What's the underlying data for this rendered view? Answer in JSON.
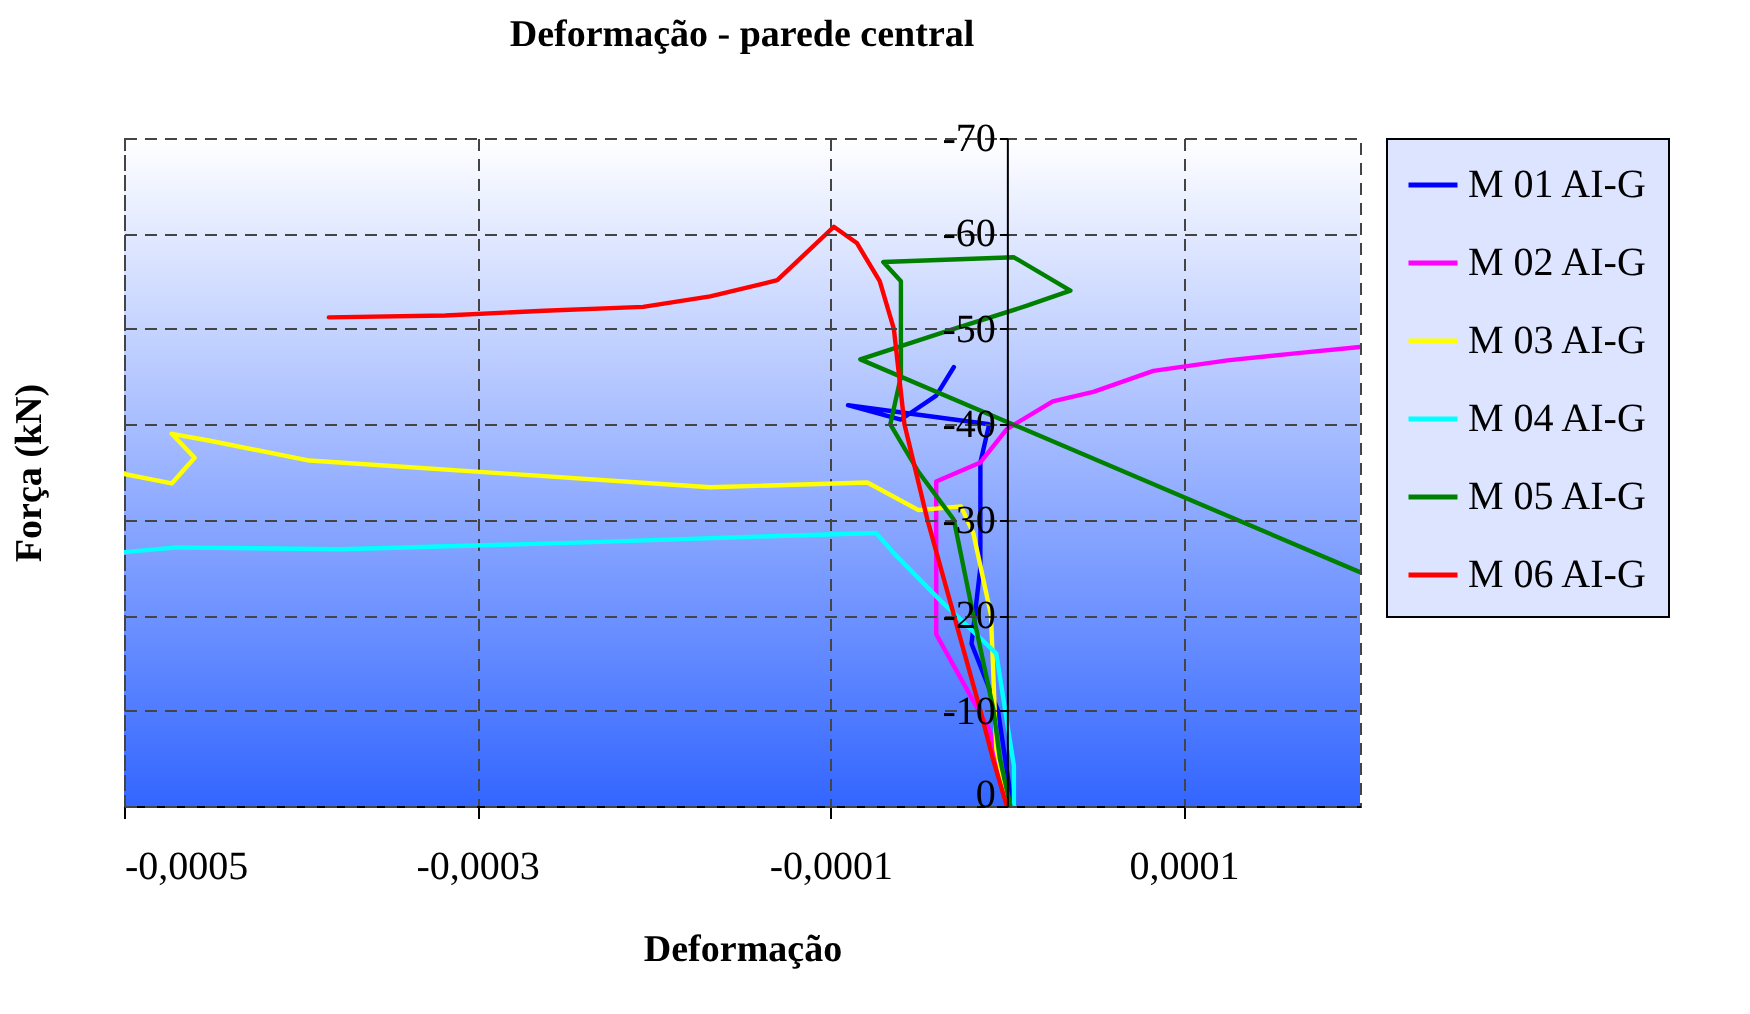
{
  "chart_data": {
    "type": "line",
    "title": "Deformação - parede central",
    "xlabel": "Deformação",
    "ylabel": "Força (kN)",
    "xlim": [
      -0.0005,
      0.0002
    ],
    "ylim": [
      0,
      -70
    ],
    "xticks": [
      {
        "value": -0.0005,
        "label": "-0,0005"
      },
      {
        "value": -0.0003,
        "label": "-0,0003"
      },
      {
        "value": -0.0001,
        "label": "-0,0001"
      },
      {
        "value": 0.0001,
        "label": "0,0001"
      }
    ],
    "yticks": [
      0,
      -10,
      -20,
      -30,
      -40,
      -50,
      -60,
      -70
    ],
    "grid": true,
    "legend": "right",
    "line_style": "solid",
    "marker": "none",
    "series": [
      {
        "name": "M 01 AI-G",
        "color": "#0000ff",
        "x": [
          3e-06,
          -5e-06,
          -2e-05,
          -1.5e-05,
          -1.5e-05,
          -1.5e-05,
          -1e-05,
          -5e-05,
          -9e-05,
          -6e-05,
          -4e-05,
          -3e-05
        ],
        "values": [
          0,
          -10,
          -17,
          -25,
          -30,
          -36,
          -40,
          -41,
          -42,
          -40.5,
          -43,
          -46
        ]
      },
      {
        "name": "M 02 AI-G",
        "color": "#ff00ff",
        "x": [
          2e-06,
          -1e-05,
          -4e-05,
          -4e-05,
          -4e-05,
          -4e-05,
          -1.5e-05,
          0,
          2.6e-05,
          4.9e-05,
          8.3e-05,
          0.000125,
          0.000162,
          0.0002
        ],
        "values": [
          0,
          -8,
          -18,
          -25,
          -31,
          -34,
          -36,
          -39.5,
          -42.4,
          -43.4,
          -45.6,
          -46.7,
          -47.4,
          -48.1
        ]
      },
      {
        "name": "M 03 AI-G",
        "color": "#ffff00",
        "x": [
          1e-06,
          -6e-06,
          -9e-06,
          -1.9e-05,
          -2.6e-05,
          -5e-05,
          -7.9e-05,
          -0.000168,
          -0.000281,
          -0.000395,
          -0.000452,
          -0.000473,
          -0.00046,
          -0.000473,
          -0.0005
        ],
        "values": [
          0,
          -6,
          -20,
          -28.6,
          -31.4,
          -31,
          -33.9,
          -33.4,
          -34.8,
          -36.2,
          -38.3,
          -39,
          -36.5,
          -33.8,
          -34.8
        ]
      },
      {
        "name": "M 04 AI-G",
        "color": "#00ffff",
        "x": [
          4e-06,
          4e-06,
          -6e-06,
          -3.8e-05,
          -6.4e-05,
          -7.4e-05,
          -0.00013,
          -0.000243,
          -0.000377,
          -0.00047,
          -0.0005
        ],
        "values": [
          0,
          -4.2,
          -16,
          -21.6,
          -26.5,
          -28.6,
          -28.3,
          -27.6,
          -26.9,
          -27.1,
          -26.6
        ]
      },
      {
        "name": "M 05 AI-G",
        "color": "#008000",
        "x": [
          2e-06,
          -4e-06,
          -7.5e-06,
          -1.9e-05,
          -3e-05,
          -5e-05,
          -6.6e-05,
          -6e-05,
          -6e-05,
          -6e-05,
          -7e-05,
          4e-06,
          3.6e-05,
          1.1e-05,
          -3e-05,
          -8.3e-05,
          0.0002
        ],
        "values": [
          0,
          -5,
          -10,
          -20,
          -30,
          -35,
          -40,
          -45,
          -50,
          -55,
          -57,
          -57.5,
          -54,
          -52.4,
          -50,
          -46.8,
          -24.5
        ]
      },
      {
        "name": "M 06 AI-G",
        "color": "#ff0000",
        "x": [
          0,
          -8e-06,
          -1.5e-05,
          -3e-05,
          -4.5e-05,
          -5.8e-05,
          -6.4e-05,
          -7.2e-05,
          -8.5e-05,
          -9.8e-05,
          -0.00013,
          -0.000168,
          -0.000206,
          -0.000262,
          -0.000318,
          -0.000384
        ],
        "values": [
          0,
          -5,
          -10,
          -20,
          -30,
          -40,
          -50,
          -55,
          -59,
          -60.7,
          -55.1,
          -53.4,
          -52.3,
          -51.9,
          -51.4,
          -51.2
        ]
      }
    ]
  }
}
